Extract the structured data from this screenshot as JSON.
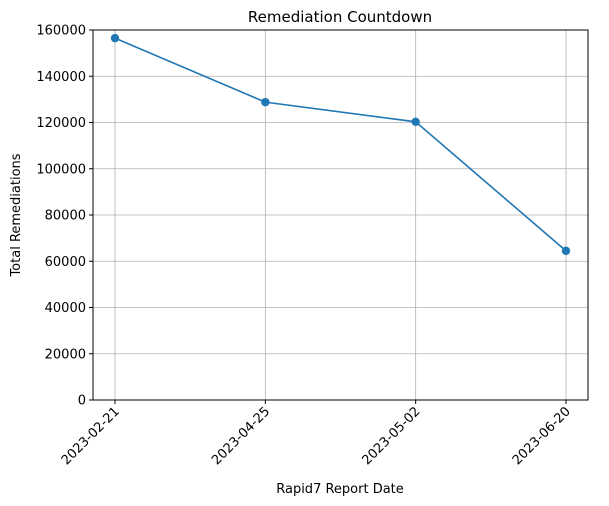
{
  "chart_data": {
    "type": "line",
    "title": "Remediation Countdown",
    "xlabel": "Rapid7 Report Date",
    "ylabel": "Total Remediations",
    "categories": [
      "2023-02-21",
      "2023-04-25",
      "2023-05-02",
      "2023-06-20"
    ],
    "series": [
      {
        "values": [
          156500,
          128800,
          120300,
          64500
        ],
        "color": "#1f77b4",
        "marker": "circle"
      }
    ],
    "ylim": [
      0,
      160000
    ],
    "yticks": [
      0,
      20000,
      40000,
      60000,
      80000,
      100000,
      120000,
      140000,
      160000
    ],
    "grid": true,
    "x_tick_rotation": -45
  }
}
